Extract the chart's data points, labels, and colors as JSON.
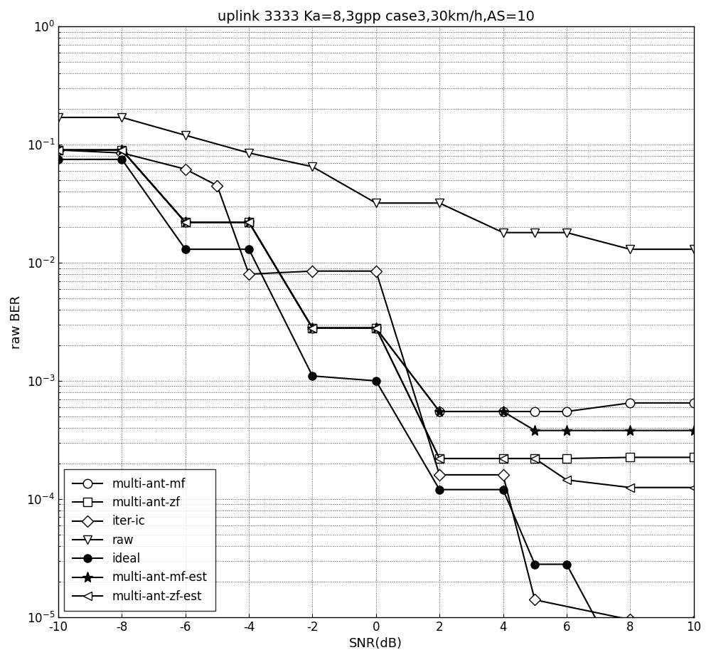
{
  "title": "uplink 3333 Ka=8,3gpp case3,30km/h,AS=10",
  "xlabel": "SNR(dB)",
  "ylabel": "raw BER",
  "xlim": [
    -10,
    10
  ],
  "ylim": [
    1e-05,
    1.0
  ],
  "title_fontsize": 14,
  "label_fontsize": 13,
  "tick_fontsize": 12,
  "legend_fontsize": 12,
  "line_color": "#000000",
  "background_color": "#ffffff",
  "series": [
    {
      "label": "multi-ant-mf",
      "x": [
        -10,
        -8,
        -6,
        -4,
        -2,
        0,
        2,
        4,
        5,
        6,
        8,
        10
      ],
      "y": [
        0.09,
        0.09,
        0.022,
        0.022,
        0.0028,
        0.0028,
        0.00055,
        0.00055,
        0.00055,
        0.00055,
        0.00065,
        0.00065
      ],
      "marker": "o",
      "mfc": "white",
      "mec": "black",
      "ms": 9,
      "lw": 1.5
    },
    {
      "label": "multi-ant-zf",
      "x": [
        -10,
        -8,
        -6,
        -4,
        -2,
        0,
        2,
        4,
        5,
        6,
        8,
        10
      ],
      "y": [
        0.09,
        0.09,
        0.022,
        0.022,
        0.0028,
        0.0028,
        0.00022,
        0.00022,
        0.00022,
        0.00022,
        0.000225,
        0.000225
      ],
      "marker": "s",
      "mfc": "white",
      "mec": "black",
      "ms": 9,
      "lw": 1.5
    },
    {
      "label": "iter-ic",
      "x": [
        -10,
        -8,
        -6,
        -5,
        -4,
        -2,
        0,
        2,
        4,
        5,
        8,
        10
      ],
      "y": [
        0.09,
        0.085,
        0.062,
        0.045,
        0.008,
        0.0085,
        0.0085,
        0.00016,
        0.00016,
        1.4e-05,
        9.5e-06,
        9.2e-06
      ],
      "marker": "D",
      "mfc": "white",
      "mec": "black",
      "ms": 8,
      "lw": 1.5
    },
    {
      "label": "raw",
      "x": [
        -10,
        -8,
        -6,
        -4,
        -2,
        0,
        2,
        4,
        5,
        6,
        8,
        10
      ],
      "y": [
        0.17,
        0.17,
        0.12,
        0.085,
        0.065,
        0.032,
        0.032,
        0.018,
        0.018,
        0.018,
        0.013,
        0.013
      ],
      "marker": "v",
      "mfc": "white",
      "mec": "black",
      "ms": 9,
      "lw": 1.5
    },
    {
      "label": "ideal",
      "x": [
        -10,
        -8,
        -6,
        -4,
        -2,
        0,
        2,
        4,
        5,
        6,
        8,
        10
      ],
      "y": [
        0.075,
        0.075,
        0.013,
        0.013,
        0.0011,
        0.001,
        0.00012,
        0.00012,
        2.8e-05,
        2.8e-05,
        2.8e-06,
        2.8e-06
      ],
      "marker": "o",
      "mfc": "black",
      "mec": "black",
      "ms": 8,
      "lw": 1.5
    },
    {
      "label": "multi-ant-mf-est",
      "x": [
        -10,
        -8,
        -6,
        -4,
        -2,
        0,
        2,
        4,
        5,
        6,
        8,
        10
      ],
      "y": [
        0.09,
        0.09,
        0.022,
        0.022,
        0.0028,
        0.0028,
        0.00055,
        0.00055,
        0.00038,
        0.00038,
        0.00038,
        0.00038
      ],
      "marker": "*",
      "mfc": "black",
      "mec": "black",
      "ms": 11,
      "lw": 1.5
    },
    {
      "label": "multi-ant-zf-est",
      "x": [
        -10,
        -8,
        -6,
        -4,
        -2,
        0,
        2,
        4,
        5,
        6,
        8,
        10
      ],
      "y": [
        0.09,
        0.09,
        0.022,
        0.022,
        0.0028,
        0.0028,
        0.00022,
        0.00022,
        0.00022,
        0.000145,
        0.000125,
        0.000125
      ],
      "marker": "<",
      "mfc": "white",
      "mec": "black",
      "ms": 9,
      "lw": 1.5
    }
  ]
}
